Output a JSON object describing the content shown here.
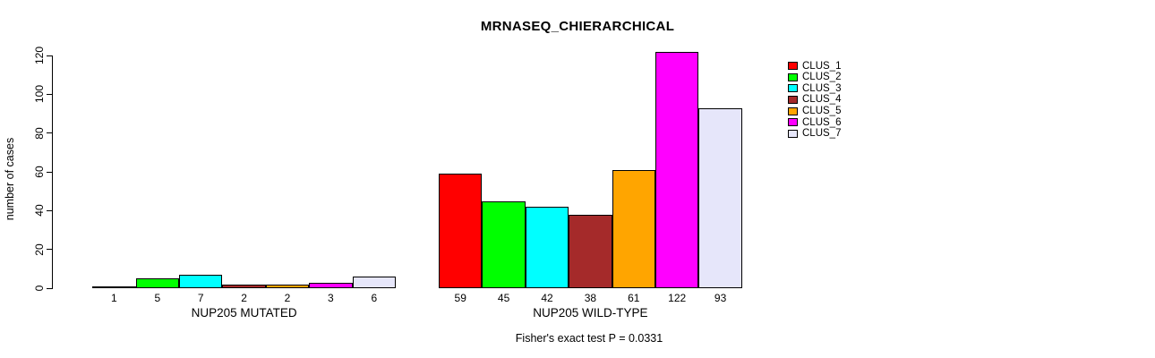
{
  "title": "MRNASEQ_CHIERARCHICAL",
  "chart_data": {
    "type": "bar",
    "title": "MRNASEQ_CHIERARCHICAL",
    "ylabel": "number of cases",
    "xlabel": "",
    "ylim": [
      0,
      120
    ],
    "yticks": [
      0,
      20,
      40,
      60,
      80,
      100,
      120
    ],
    "grid": false,
    "legend_position": "right",
    "series_names": [
      "CLUS_1",
      "CLUS_2",
      "CLUS_3",
      "CLUS_4",
      "CLUS_5",
      "CLUS_6",
      "CLUS_7"
    ],
    "colors": [
      "#FF0000",
      "#00FF00",
      "#00FFFF",
      "#A52A2A",
      "#FFA500",
      "#FF00FF",
      "#E6E6FA"
    ],
    "groups": [
      {
        "label": "NUP205 MUTATED",
        "values": [
          1,
          5,
          7,
          2,
          2,
          3,
          6
        ]
      },
      {
        "label": "NUP205 WILD-TYPE",
        "values": [
          59,
          45,
          42,
          38,
          61,
          122,
          93
        ]
      }
    ],
    "bar_value_labels": [
      [
        "1",
        "5",
        "7",
        "2",
        "2",
        "3",
        "6"
      ],
      [
        "59",
        "45",
        "42",
        "38",
        "61",
        "122",
        "93"
      ]
    ],
    "annotation": "Fisher's exact test P = 0.0331"
  }
}
